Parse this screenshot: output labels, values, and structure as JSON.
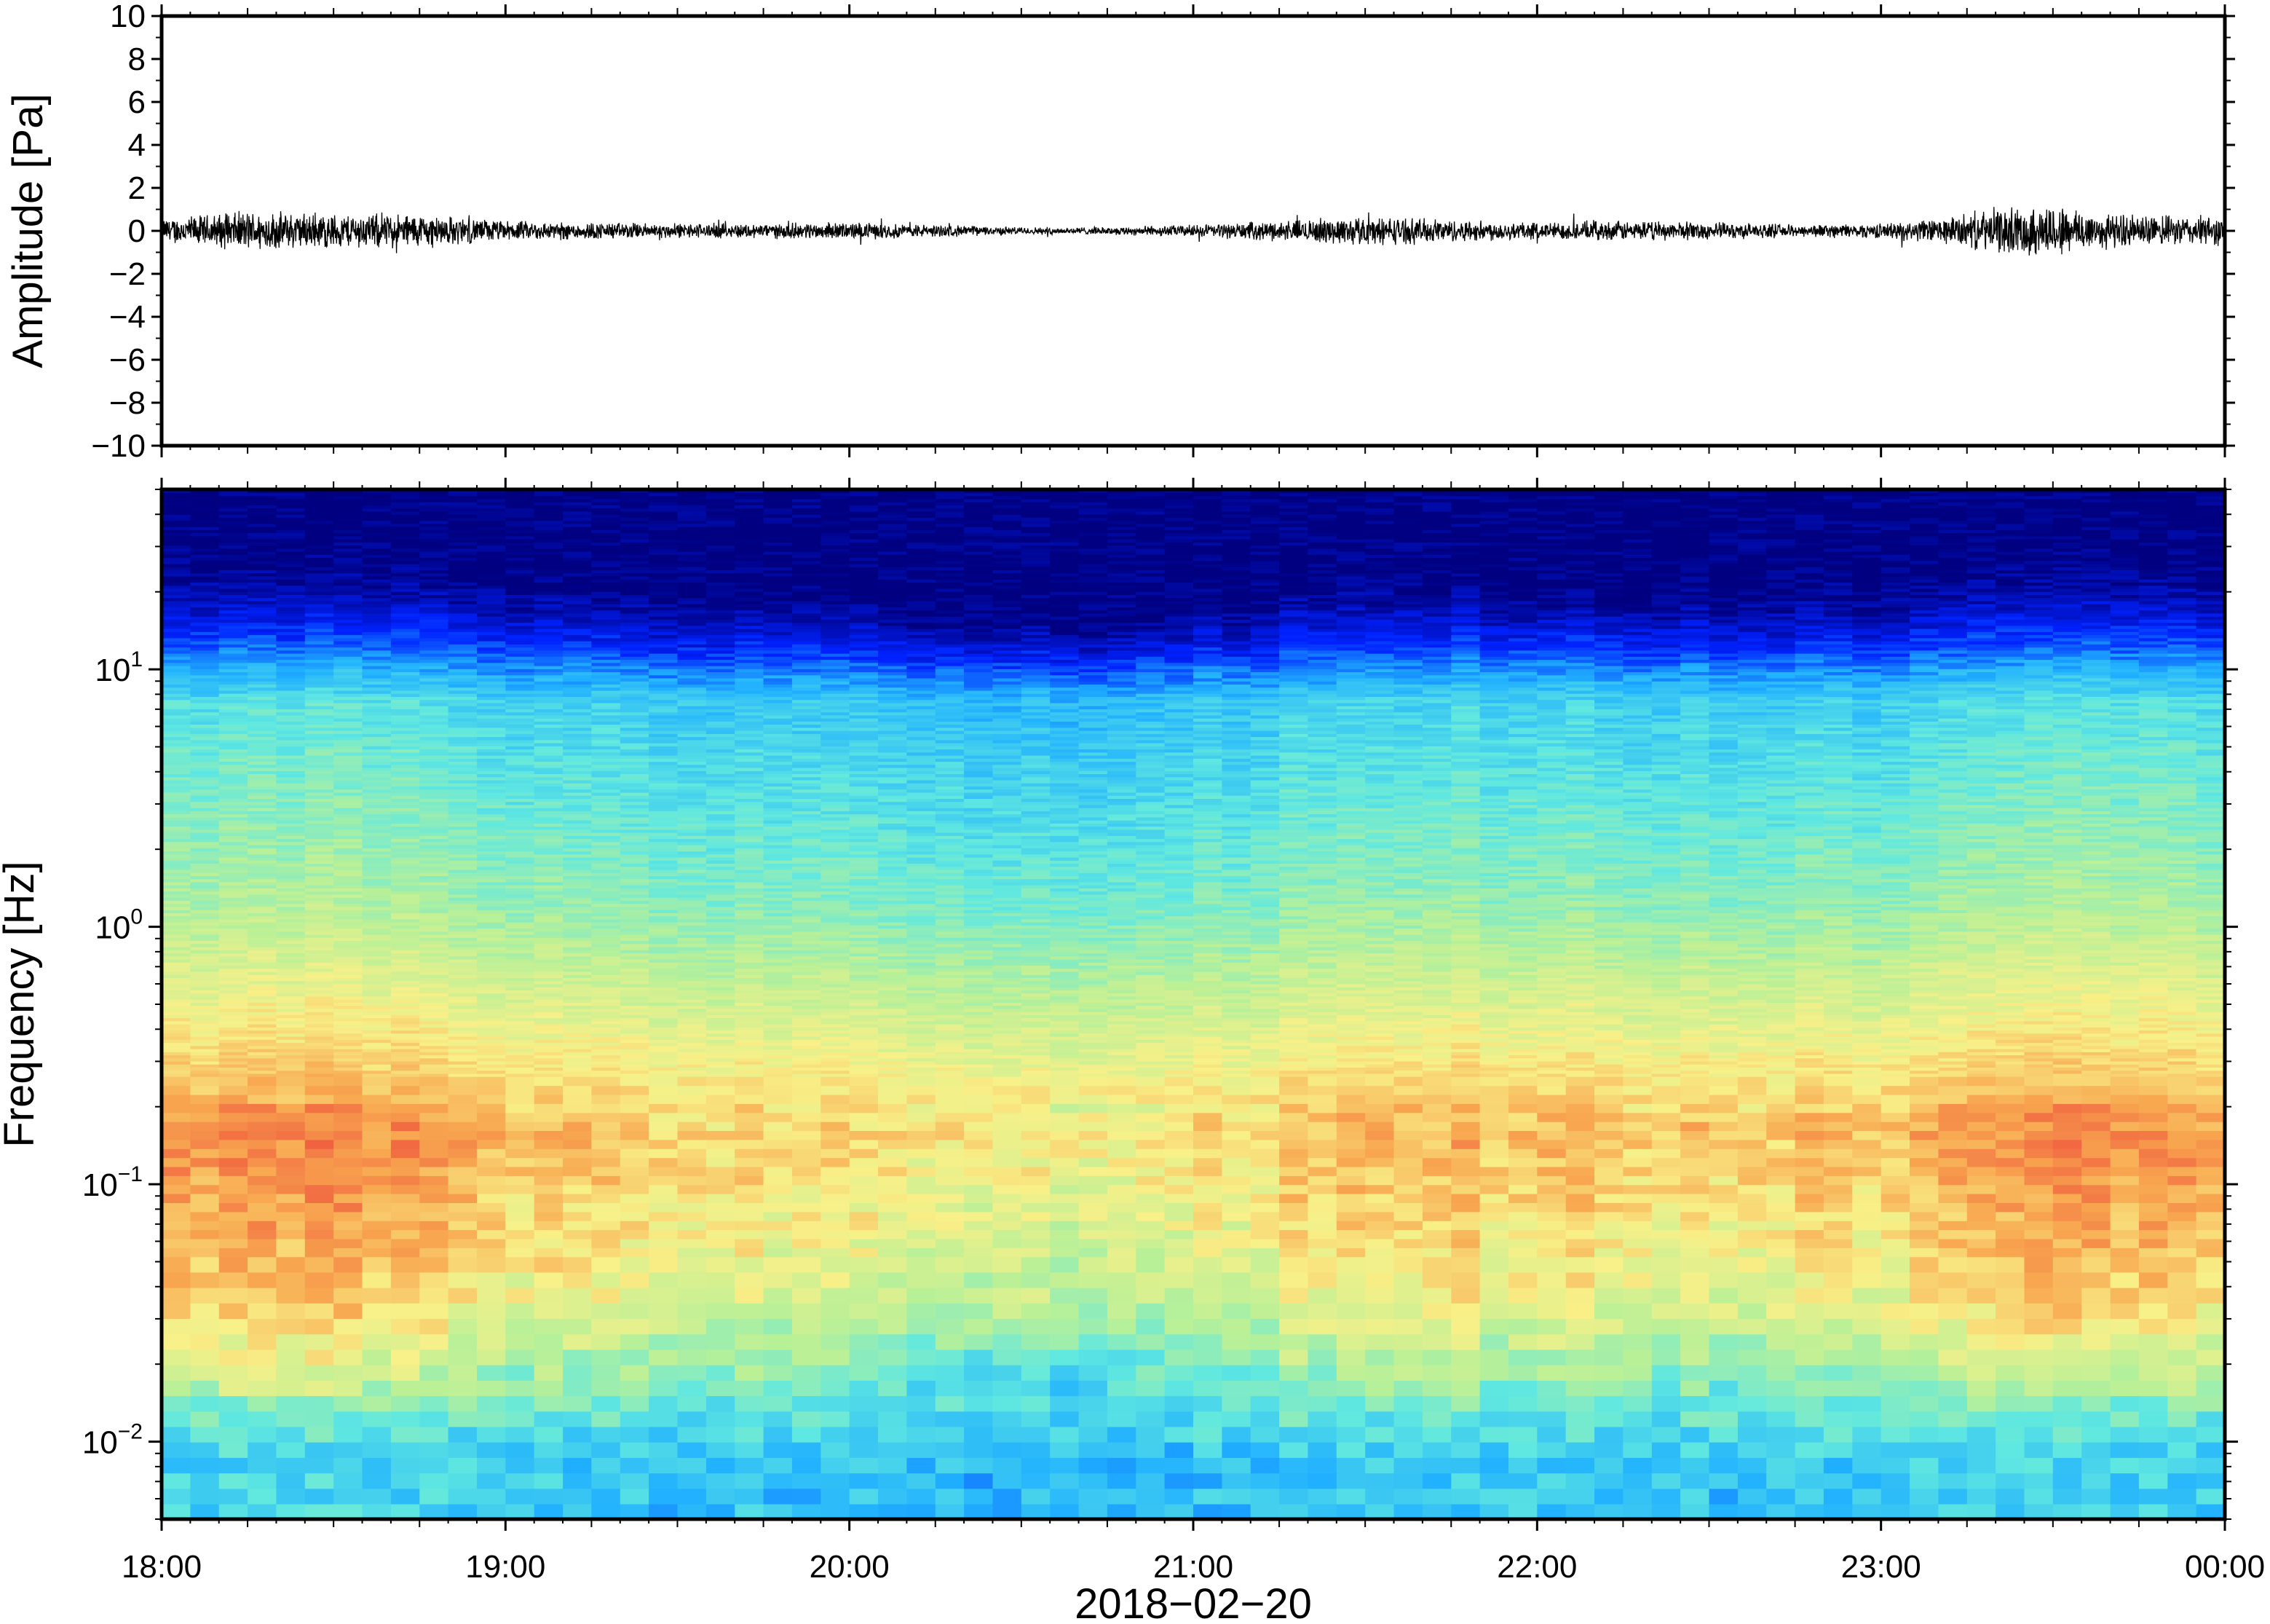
{
  "chart_data": [
    {
      "type": "line",
      "panel": "waveform",
      "title": "",
      "ylabel": "Amplitude [Pa]",
      "ylim": [
        -10,
        10
      ],
      "yticks": [
        {
          "value": 10,
          "label": "10"
        },
        {
          "value": 8,
          "label": "8"
        },
        {
          "value": 6,
          "label": "6"
        },
        {
          "value": 4,
          "label": "4"
        },
        {
          "value": 2,
          "label": "2"
        },
        {
          "value": 0,
          "label": "0"
        },
        {
          "value": -2,
          "label": "−2"
        },
        {
          "value": -4,
          "label": "−4"
        },
        {
          "value": -6,
          "label": "−6"
        },
        {
          "value": -8,
          "label": "−8"
        },
        {
          "value": -10,
          "label": "−10"
        }
      ],
      "xlim": [
        "18:00",
        "00:00"
      ],
      "grid": false,
      "line_color": "#000000",
      "series": [
        {
          "x": [
            "18:00",
            "18:15",
            "18:30",
            "18:45",
            "19:00",
            "19:15",
            "19:30",
            "19:45",
            "20:00",
            "20:15",
            "20:30",
            "20:45",
            "21:00",
            "21:15",
            "21:30",
            "21:45",
            "22:00",
            "22:15",
            "22:30",
            "22:45",
            "23:00",
            "23:10",
            "23:20",
            "23:30",
            "23:40",
            "23:50",
            "00:00"
          ],
          "envelope": [
            0.5,
            0.8,
            0.7,
            0.7,
            0.4,
            0.35,
            0.3,
            0.3,
            0.35,
            0.25,
            0.15,
            0.15,
            0.25,
            0.4,
            0.6,
            0.45,
            0.35,
            0.4,
            0.35,
            0.25,
            0.3,
            0.5,
            0.9,
            1.1,
            0.7,
            0.6,
            0.6
          ]
        }
      ]
    },
    {
      "type": "heatmap",
      "panel": "spectrogram",
      "title": "",
      "ylabel": "Frequency [Hz]",
      "xlabel": "2018−02−20",
      "yscale": "log",
      "ylim": [
        0.005,
        50
      ],
      "yticks": [
        {
          "value": 10,
          "base": "10",
          "exp": "1"
        },
        {
          "value": 1,
          "base": "10",
          "exp": "0"
        },
        {
          "value": 0.1,
          "base": "10",
          "exp": "−1"
        },
        {
          "value": 0.01,
          "base": "10",
          "exp": "−2"
        }
      ],
      "xticks": [
        {
          "hour": 18,
          "label": "18:00"
        },
        {
          "hour": 19,
          "label": "19:00"
        },
        {
          "hour": 20,
          "label": "20:00"
        },
        {
          "hour": 21,
          "label": "21:00"
        },
        {
          "hour": 22,
          "label": "22:00"
        },
        {
          "hour": 23,
          "label": "23:00"
        },
        {
          "hour": 24,
          "label": "00:00"
        }
      ],
      "colormap": "jet",
      "colormap_stops": [
        "#000080",
        "#0022ff",
        "#20b0ff",
        "#60e8e0",
        "#b8f098",
        "#f8f088",
        "#f8a850",
        "#f06040",
        "#d02020"
      ],
      "grid": false,
      "intensity_bands": [
        {
          "freq_range": [
            20,
            50
          ],
          "level": 0.0
        },
        {
          "freq_range": [
            5,
            20
          ],
          "level": 0.3
        },
        {
          "freq_range": [
            0.3,
            5
          ],
          "level": 0.45
        },
        {
          "freq_range": [
            0.08,
            0.3
          ],
          "level": 0.72
        },
        {
          "freq_range": [
            0.015,
            0.08
          ],
          "level": 0.6
        },
        {
          "freq_range": [
            0.005,
            0.015
          ],
          "level": 0.3
        }
      ],
      "activity_by_time": {
        "x": [
          "18:00",
          "18:30",
          "19:00",
          "19:30",
          "20:00",
          "20:30",
          "21:00",
          "21:30",
          "22:00",
          "22:30",
          "23:00",
          "23:30",
          "00:00"
        ],
        "relative_energy": [
          0.7,
          0.85,
          0.55,
          0.45,
          0.45,
          0.25,
          0.35,
          0.65,
          0.55,
          0.5,
          0.55,
          0.9,
          0.7
        ]
      }
    }
  ]
}
